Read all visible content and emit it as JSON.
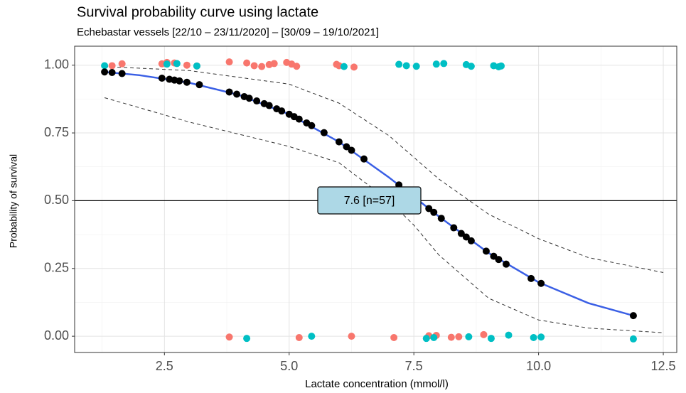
{
  "chart_data": {
    "type": "scatter",
    "title": "Survival probability curve using lactate",
    "subtitle": "Echebastar vessels [22/10 – 23/11/2020] – [30/09 – 19/10/2021]",
    "x_label": "Lactate concentration (mmol/l)",
    "y_label": "Probability of survival",
    "annotation": "7.6  [n=57]",
    "hline": 0.5,
    "xlim": [
      0.7,
      12.77
    ],
    "ylim": [
      -0.06,
      1.07
    ],
    "xticks": [
      {
        "value": 2.5,
        "label": "2.5"
      },
      {
        "value": 5,
        "label": "5.0"
      },
      {
        "value": 7.5,
        "label": "7.5"
      },
      {
        "value": 10,
        "label": "10.0"
      },
      {
        "value": 12.5,
        "label": "12.5"
      }
    ],
    "yticks": [
      {
        "value": 0,
        "label": "0.00"
      },
      {
        "value": 0.25,
        "label": "0.25"
      },
      {
        "value": 0.5,
        "label": "0.50"
      },
      {
        "value": 0.75,
        "label": "0.75"
      },
      {
        "value": 1,
        "label": "1.00"
      }
    ],
    "xminor": [
      1.25,
      3.75,
      6.25,
      8.75,
      11.25
    ],
    "yminor": [
      0.125,
      0.375,
      0.625,
      0.875
    ],
    "grid": true,
    "series": [
      {
        "mode": "line",
        "dash": true,
        "color": "#333333",
        "x": [
          1.3,
          3,
          5,
          6,
          7,
          8,
          9,
          10,
          11,
          12.5
        ],
        "values": [
          0.995,
          0.98,
          0.93,
          0.86,
          0.74,
          0.58,
          0.45,
          0.36,
          0.29,
          0.235
        ]
      },
      {
        "mode": "line",
        "dash": true,
        "color": "#333333",
        "x": [
          1.3,
          3,
          5,
          6,
          7,
          7.5,
          8,
          9,
          10,
          11,
          12.5
        ],
        "values": [
          0.88,
          0.79,
          0.7,
          0.64,
          0.5,
          0.41,
          0.3,
          0.14,
          0.06,
          0.03,
          0.013
        ]
      },
      {
        "mode": "line",
        "dash": false,
        "color": "#3a5fe5",
        "x": [
          1.3,
          2,
          3,
          4,
          5,
          6,
          7,
          7.6,
          8,
          9,
          10,
          11,
          11.9
        ],
        "values": [
          0.975,
          0.963,
          0.935,
          0.89,
          0.819,
          0.717,
          0.586,
          0.5,
          0.442,
          0.307,
          0.199,
          0.122,
          0.076
        ]
      },
      {
        "mode": "points",
        "color": "#F8766D",
        "x": [
          1.45,
          1.65,
          2.45,
          2.55,
          2.7,
          2.95,
          3.15,
          3.8,
          4.15,
          4.3,
          4.45,
          4.6,
          4.7,
          4.95,
          5.05,
          5.15,
          5.95,
          6.0,
          6.3,
          3.8,
          5.2,
          6.25,
          7.1,
          7.8,
          7.95,
          8.25,
          8.4,
          8.9
        ],
        "values": [
          0.998,
          1.005,
          1.005,
          1.01,
          1.008,
          1.0,
          0.997,
          1.012,
          1.008,
          0.998,
          0.995,
          1.002,
          1.006,
          1.01,
          1.004,
          0.996,
          1.003,
          0.998,
          0.993,
          -0.003,
          -0.005,
          0.0,
          -0.005,
          0.002,
          0.003,
          -0.004,
          -0.002,
          0.006
        ]
      },
      {
        "mode": "points",
        "color": "#00BFC4",
        "x": [
          1.3,
          2.55,
          2.75,
          3.15,
          6.1,
          7.2,
          7.35,
          7.55,
          7.95,
          8.1,
          8.55,
          8.65,
          9.1,
          9.2,
          9.25,
          4.15,
          5.45,
          7.75,
          7.9,
          8.6,
          9.05,
          9.4,
          9.9,
          10.05,
          11.9
        ],
        "values": [
          0.998,
          1.004,
          1.006,
          0.997,
          0.995,
          1.003,
          0.998,
          0.996,
          1.004,
          1.006,
          1.002,
          0.996,
          0.998,
          0.994,
          0.997,
          -0.008,
          0.0,
          -0.008,
          -0.005,
          -0.002,
          -0.008,
          0.004,
          -0.005,
          -0.003,
          -0.01
        ]
      },
      {
        "mode": "points",
        "color": "#000000",
        "x": [
          1.3,
          1.45,
          1.65,
          2.45,
          2.6,
          2.7,
          2.8,
          2.95,
          3.2,
          3.8,
          3.95,
          4.1,
          4.2,
          4.35,
          4.5,
          4.6,
          4.75,
          4.85,
          5.0,
          5.1,
          5.2,
          5.35,
          5.45,
          5.7,
          6.0,
          6.15,
          6.25,
          6.5,
          7.2,
          7.8,
          7.9,
          8.05,
          8.3,
          8.45,
          8.55,
          8.65,
          8.95,
          9.1,
          9.2,
          9.35,
          9.85,
          10.05,
          11.9
        ],
        "values": [
          0.975,
          0.973,
          0.969,
          0.952,
          0.948,
          0.945,
          0.942,
          0.937,
          0.928,
          0.901,
          0.893,
          0.884,
          0.878,
          0.868,
          0.858,
          0.851,
          0.839,
          0.831,
          0.819,
          0.81,
          0.801,
          0.787,
          0.777,
          0.751,
          0.717,
          0.699,
          0.686,
          0.654,
          0.558,
          0.471,
          0.457,
          0.435,
          0.4,
          0.379,
          0.366,
          0.352,
          0.314,
          0.295,
          0.283,
          0.266,
          0.213,
          0.195,
          0.076
        ]
      }
    ]
  }
}
